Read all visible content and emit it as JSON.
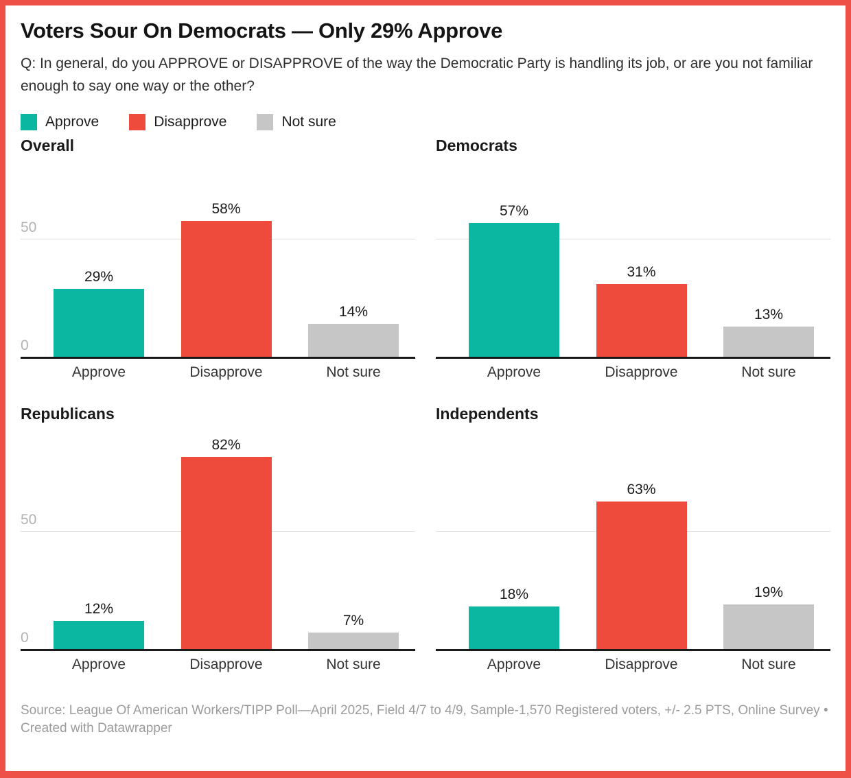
{
  "frame": {
    "border_color": "#ef5046"
  },
  "header": {
    "title": "Voters Sour On Democrats — Only 29% Approve",
    "description": "Q: In general, do you APPROVE or DISAPPROVE of the way the Democratic Party is handling its job, or are you not familiar enough to say one way or the other?"
  },
  "legend": {
    "items": [
      {
        "label": "Approve",
        "color": "#0bb7a0"
      },
      {
        "label": "Disapprove",
        "color": "#ee4b3c"
      },
      {
        "label": "Not sure",
        "color": "#c6c6c6"
      }
    ]
  },
  "chart_data": {
    "type": "bar",
    "categories": [
      "Approve",
      "Disapprove",
      "Not sure"
    ],
    "series_colors": [
      "#0bb7a0",
      "#ee4b3c",
      "#c6c6c6"
    ],
    "panels": [
      {
        "title": "Overall",
        "values": [
          29,
          58,
          14
        ]
      },
      {
        "title": "Democrats",
        "values": [
          57,
          31,
          13
        ]
      },
      {
        "title": "Republicans",
        "values": [
          12,
          82,
          7
        ]
      },
      {
        "title": "Independents",
        "values": [
          18,
          63,
          19
        ]
      }
    ],
    "value_suffix": "%",
    "ylim": [
      0,
      88
    ],
    "yticks": [
      0,
      50
    ],
    "grid": "horizontal line at 50 only; yticks shown only on left-column panels",
    "legend_position": "top",
    "title": "Voters Sour On Democrats — Only 29% Approve",
    "xlabel": "",
    "ylabel": ""
  },
  "footer": {
    "source": "Source: League Of American Workers/TIPP Poll—April 2025, Field 4/7 to 4/9, Sample-1,570 Registered voters, +/- 2.5 PTS, Online Survey • Created with Datawrapper"
  }
}
